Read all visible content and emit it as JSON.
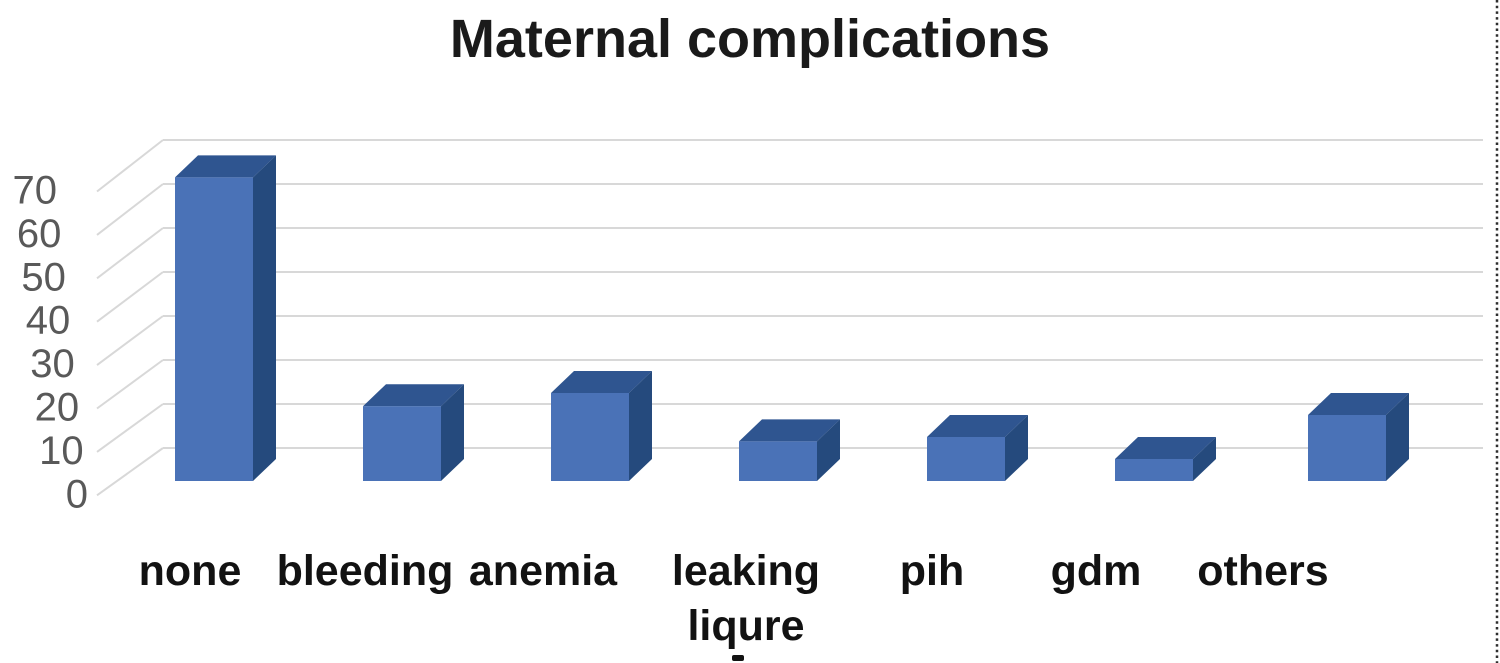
{
  "chart_data": {
    "type": "bar",
    "variant": "3d-column",
    "title": "Maternal complications",
    "categories": [
      "none",
      "bleeding",
      "anemia",
      "leaking liqure",
      "pih",
      "gdm",
      "others"
    ],
    "values": [
      69,
      17,
      20,
      9,
      10,
      5,
      15
    ],
    "xlabel": "",
    "ylabel": "",
    "ylim": [
      0,
      70
    ],
    "ytick_step": 10,
    "yticks": [
      0,
      10,
      20,
      30,
      40,
      50,
      60,
      70
    ],
    "grid": true,
    "legend": false,
    "colors": {
      "bar_front": "#4A72B7",
      "bar_top": "#2F5590",
      "bar_side": "#254A7D",
      "gridline": "#D8D8D8",
      "axis_label": "#595959",
      "category_label": "#121212",
      "title": "#1A1A1A",
      "border_dots": "#2E2E2E"
    }
  },
  "decorations": {
    "right_dotted_border": true,
    "cutoff_text_fragment": true
  }
}
